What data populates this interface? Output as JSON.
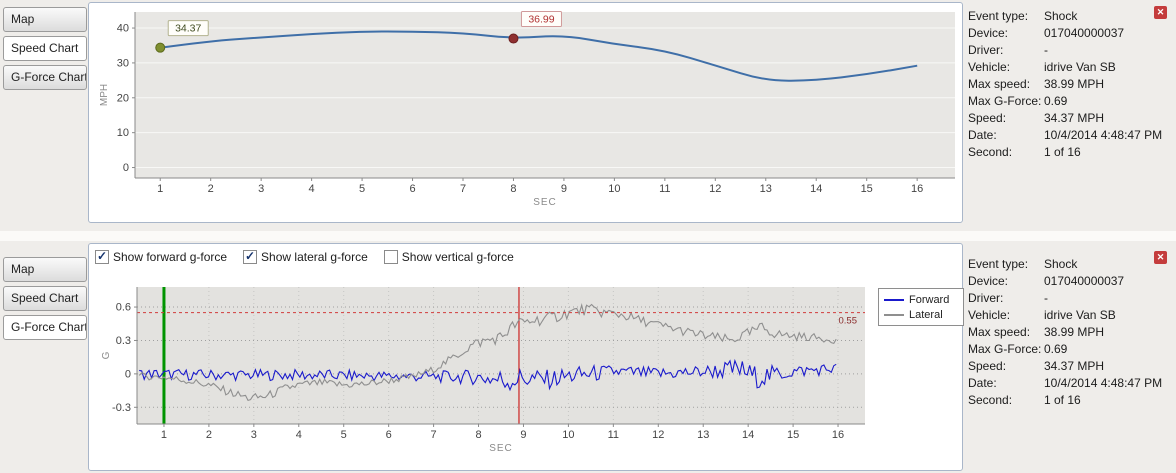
{
  "icons": {
    "alert_glyph": "✕"
  },
  "tabs": {
    "items": [
      {
        "label": "Map"
      },
      {
        "label": "Speed Chart"
      },
      {
        "label": "G-Force Chart"
      }
    ],
    "top_selected_index": 1,
    "bottom_selected_index": 2
  },
  "info_panel": {
    "rows": [
      {
        "label": "Event type:",
        "value": "Shock"
      },
      {
        "label": "Device:",
        "value": "017040000037"
      },
      {
        "label": "Driver:",
        "value": "-"
      },
      {
        "label": "Vehicle:",
        "value": "idrive Van SB"
      },
      {
        "label": "Max speed:",
        "value": "38.99 MPH"
      },
      {
        "label": "Max G-Force:",
        "value": "0.69"
      },
      {
        "label": "Speed:",
        "value": "34.37 MPH"
      },
      {
        "label": "Date:",
        "value": "10/4/2014 4:48:47 PM"
      },
      {
        "label": "Second:",
        "value": "1 of 16"
      }
    ]
  },
  "gforce_controls": {
    "checkboxes": [
      {
        "label": "Show forward g-force",
        "checked": true
      },
      {
        "label": "Show lateral g-force",
        "checked": true
      },
      {
        "label": "Show vertical g-force",
        "checked": false
      }
    ]
  },
  "chart_data": [
    {
      "id": "speed",
      "type": "line",
      "title": "Speed Chart",
      "xlabel": "SEC",
      "ylabel": "MPH",
      "xlim": [
        0.5,
        16.75
      ],
      "ylim": [
        -3,
        44.6
      ],
      "xticks": [
        1,
        2,
        3,
        4,
        5,
        6,
        7,
        8,
        9,
        10,
        11,
        12,
        13,
        14,
        15,
        16
      ],
      "yticks": [
        0,
        10,
        20,
        30,
        40
      ],
      "grid": "horizontal-solid",
      "plot_bg": "#e8e7e4",
      "smooth": true,
      "series": [
        {
          "name": "Speed",
          "color": "#3f6fa8",
          "width": 2,
          "x": [
            1,
            2,
            3,
            4,
            5,
            6,
            7,
            8,
            9,
            10,
            11,
            12,
            13,
            14,
            15,
            16
          ],
          "values": [
            34.37,
            36.3,
            37.3,
            38.3,
            39.0,
            38.99,
            38.6,
            36.99,
            38.0,
            35.4,
            33.6,
            29.3,
            24.8,
            25.0,
            26.7,
            29.2
          ]
        }
      ],
      "markers": [
        {
          "x": 1,
          "y": 34.37,
          "label": "34.37",
          "fill": "#7f8f2f",
          "stroke": "#5d6b1d",
          "label_color": "#3f4a1e",
          "label_border": "#b2b28e"
        },
        {
          "x": 8,
          "y": 36.99,
          "label": "36.99",
          "fill": "#8f3030",
          "stroke": "#6e2020",
          "label_color": "#b03232",
          "label_border": "#d09a9a"
        }
      ]
    },
    {
      "id": "gforce",
      "type": "line",
      "title": "G-Force Chart",
      "xlabel": "SEC",
      "ylabel": "G",
      "xlim": [
        0.4,
        16.6
      ],
      "ylim": [
        -0.45,
        0.78
      ],
      "xticks": [
        1,
        2,
        3,
        4,
        5,
        6,
        7,
        8,
        9,
        10,
        11,
        12,
        13,
        14,
        15,
        16
      ],
      "yticks": [
        -0.3,
        0,
        0.3,
        0.6
      ],
      "grid": "dotted",
      "plot_bg": "#e3e2df",
      "sample_step": 0.055,
      "threshold": {
        "y": 0.55,
        "label": "0.55",
        "color": "#d13b3b"
      },
      "vlines": [
        {
          "x": 1,
          "color": "#009400",
          "width": 3,
          "name": "current-second-line"
        },
        {
          "x": 8.9,
          "color": "#cc2222",
          "width": 1.2,
          "name": "event-marker-line"
        }
      ],
      "legend": [
        {
          "name": "Forward",
          "color": "#1a1acc"
        },
        {
          "name": "Lateral",
          "color": "#8f8f8f"
        }
      ],
      "series": [
        {
          "name": "Forward",
          "color": "#1a1acc",
          "seed": 1,
          "shape": [
            [
              0.45,
              0
            ],
            [
              2,
              -0.01
            ],
            [
              4,
              -0.01
            ],
            [
              6,
              -0.02
            ],
            [
              8,
              -0.03
            ],
            [
              8.6,
              -0.06
            ],
            [
              9,
              -0.04
            ],
            [
              9.6,
              -0.05
            ],
            [
              10,
              -0.02
            ],
            [
              11,
              0.02
            ],
            [
              12,
              0
            ],
            [
              13,
              0.02
            ],
            [
              13.8,
              0.04
            ],
            [
              14.2,
              -0.03
            ],
            [
              15,
              0.02
            ],
            [
              16,
              0.05
            ]
          ],
          "noise": [
            [
              0.45,
              0.05
            ],
            [
              7,
              0.05
            ],
            [
              8,
              0.07
            ],
            [
              8.6,
              0.12
            ],
            [
              9.2,
              0.09
            ],
            [
              10.5,
              0.08
            ],
            [
              11,
              0.06
            ],
            [
              13,
              0.06
            ],
            [
              13.7,
              0.1
            ],
            [
              14.3,
              0.1
            ],
            [
              15,
              0.06
            ],
            [
              16,
              0.05
            ]
          ]
        },
        {
          "name": "Lateral",
          "color": "#8f8f8f",
          "seed": 2,
          "shape": [
            [
              0.45,
              -0.02
            ],
            [
              1,
              -0.03
            ],
            [
              1.5,
              -0.06
            ],
            [
              2,
              -0.1
            ],
            [
              2.5,
              -0.17
            ],
            [
              2.9,
              -0.22
            ],
            [
              3.3,
              -0.2
            ],
            [
              3.7,
              -0.13
            ],
            [
              4,
              -0.1
            ],
            [
              4.5,
              -0.08
            ],
            [
              5,
              -0.1
            ],
            [
              5.5,
              -0.09
            ],
            [
              6,
              -0.06
            ],
            [
              6.5,
              -0.03
            ],
            [
              7,
              0.04
            ],
            [
              7.5,
              0.16
            ],
            [
              7.9,
              0.27
            ],
            [
              8.2,
              0.3
            ],
            [
              8.5,
              0.33
            ],
            [
              8.8,
              0.44
            ],
            [
              9.2,
              0.48
            ],
            [
              9.6,
              0.5
            ],
            [
              10,
              0.55
            ],
            [
              10.4,
              0.58
            ],
            [
              10.8,
              0.55
            ],
            [
              11.2,
              0.53
            ],
            [
              11.6,
              0.48
            ],
            [
              12,
              0.44
            ],
            [
              12.4,
              0.4
            ],
            [
              12.8,
              0.36
            ],
            [
              13.2,
              0.33
            ],
            [
              13.6,
              0.3
            ],
            [
              14,
              0.36
            ],
            [
              14.3,
              0.42
            ],
            [
              14.6,
              0.36
            ],
            [
              15,
              0.34
            ],
            [
              15.4,
              0.33
            ],
            [
              16,
              0.3
            ]
          ],
          "noise": [
            [
              0.45,
              0.03
            ],
            [
              3,
              0.04
            ],
            [
              7,
              0.03
            ],
            [
              8,
              0.05
            ],
            [
              9,
              0.06
            ],
            [
              11,
              0.05
            ],
            [
              12,
              0.04
            ],
            [
              14,
              0.05
            ],
            [
              16,
              0.03
            ]
          ]
        }
      ]
    }
  ]
}
